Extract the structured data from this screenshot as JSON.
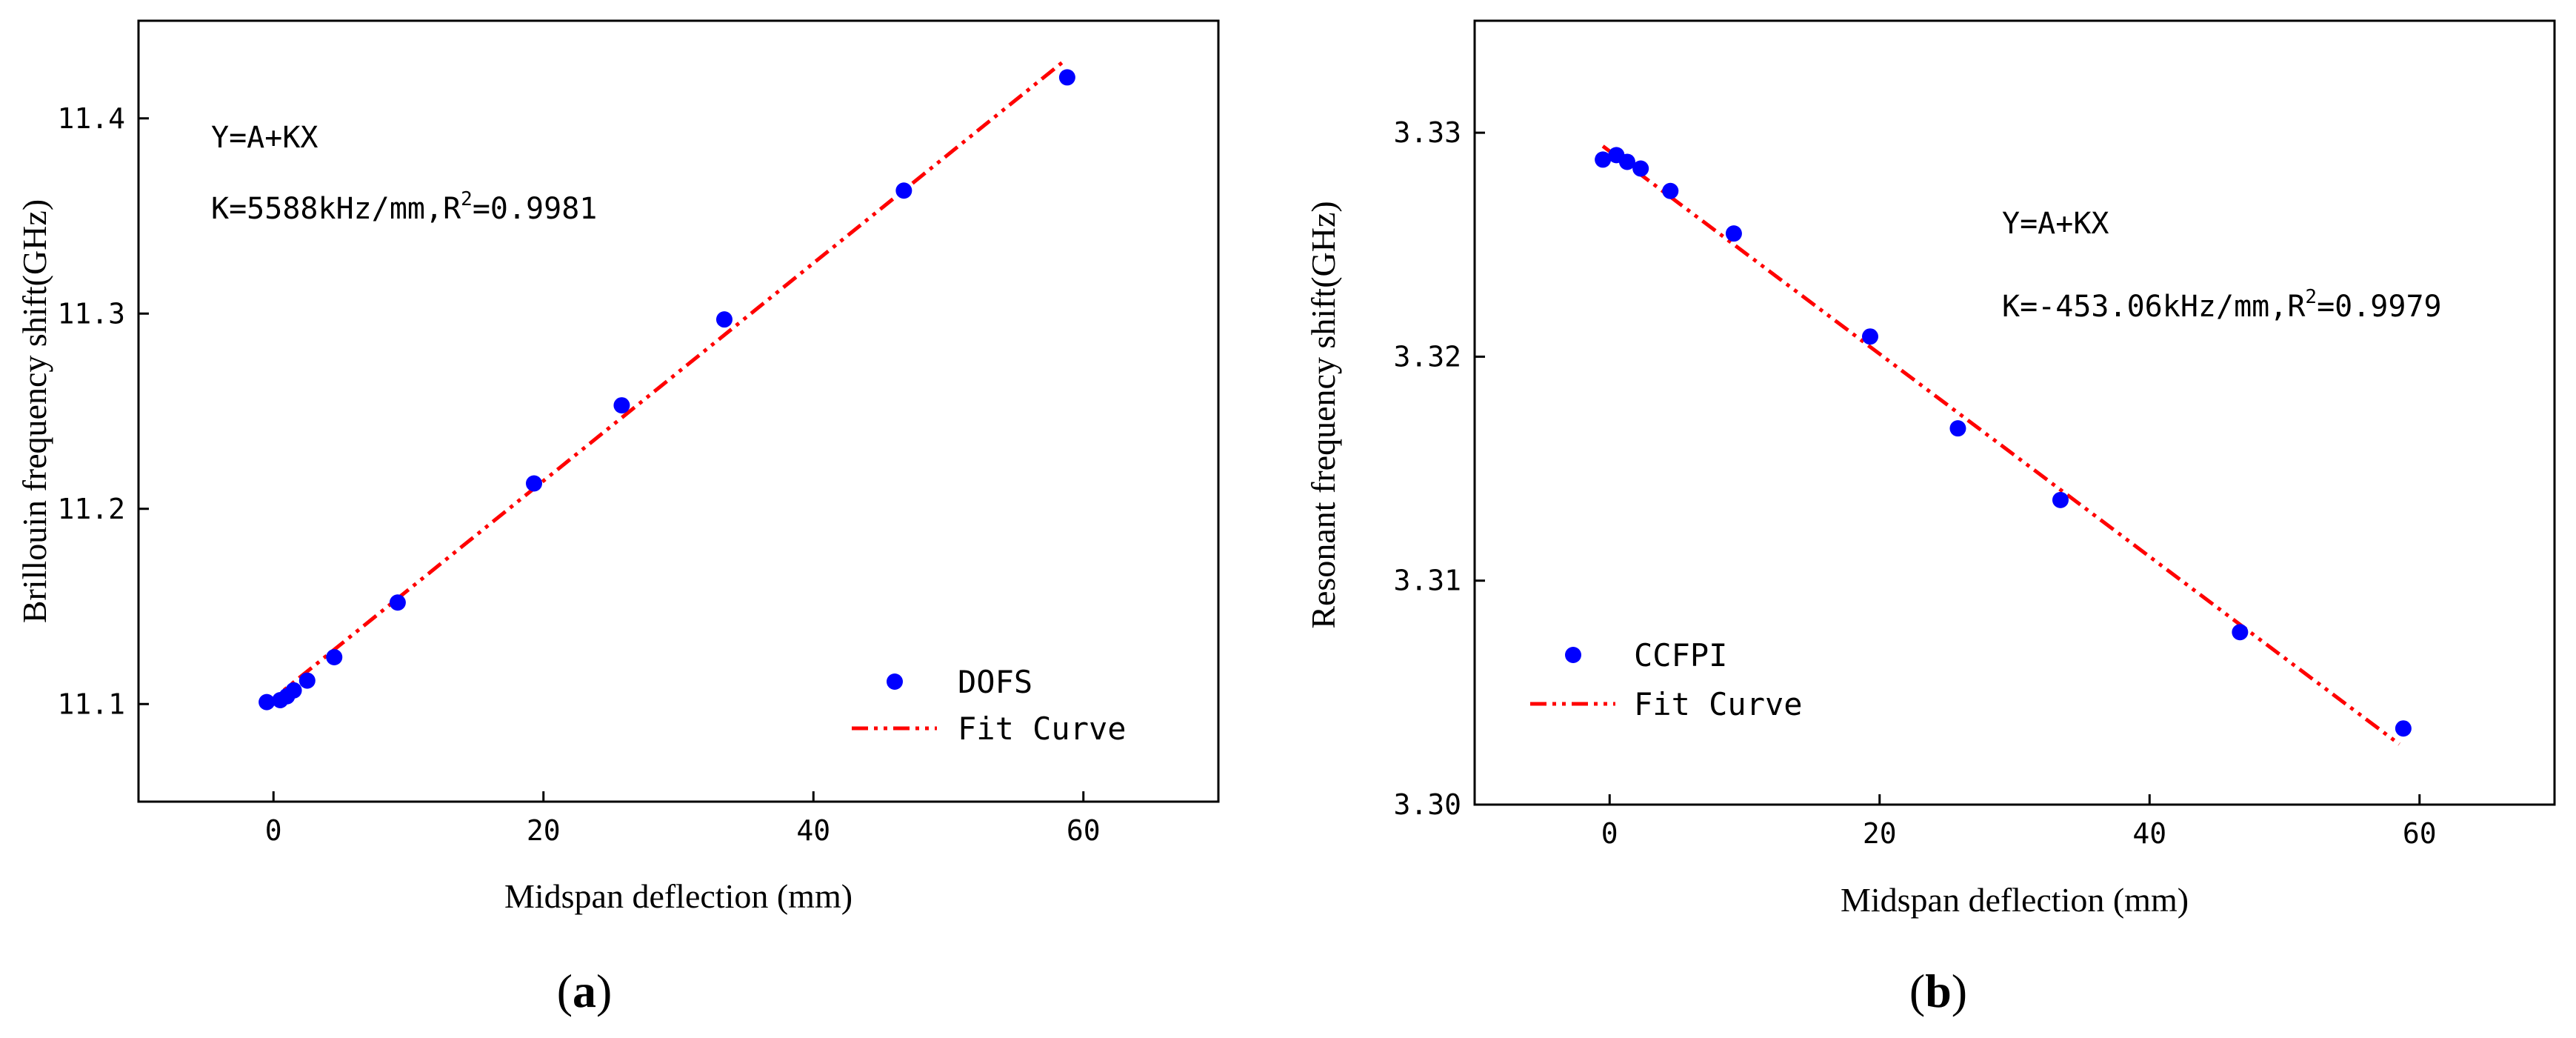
{
  "chart_data": [
    {
      "panel": "a",
      "type": "scatter",
      "caption_open": "(",
      "caption_letter": "a",
      "caption_close": ")",
      "xlabel": "Midspan deflection (mm)",
      "ylabel": "Brillouin frequency shift(GHz)",
      "xlim": [
        -10,
        70
      ],
      "ylim": [
        11.05,
        11.45
      ],
      "xticks": [
        0,
        20,
        40,
        60
      ],
      "yticks": [
        11.1,
        11.2,
        11.3,
        11.4
      ],
      "xtick_labels": [
        "0",
        "20",
        "40",
        "60"
      ],
      "ytick_labels": [
        "11.1",
        "11.2",
        "11.3",
        "11.4"
      ],
      "annotation_line1": "Y=A+KX",
      "annotation_line2_prefix": "K=5588kHz/mm,R",
      "annotation_sup": "2",
      "annotation_line2_suffix": "=0.9981",
      "legend_position": "bottom-right",
      "colors": {
        "points": "#0000ff",
        "fit": "#ff0000"
      },
      "series": [
        {
          "name": "DOFS",
          "kind": "scatter",
          "x": [
            -0.5,
            0.5,
            1.0,
            1.5,
            2.5,
            4.5,
            9.2,
            19.3,
            25.8,
            33.4,
            46.7,
            58.8
          ],
          "y": [
            11.101,
            11.102,
            11.104,
            11.107,
            11.112,
            11.124,
            11.152,
            11.213,
            11.253,
            11.297,
            11.363,
            11.421
          ]
        },
        {
          "name": "Fit Curve",
          "kind": "line",
          "x": [
            -0.5,
            58.5
          ],
          "y": [
            11.1,
            11.429
          ]
        }
      ]
    },
    {
      "panel": "b",
      "type": "scatter",
      "caption_open": "(",
      "caption_letter": "b",
      "caption_close": ")",
      "xlabel": "Midspan deflection (mm)",
      "ylabel": "Resonant frequency shift(GHz)",
      "xlim": [
        -10,
        70
      ],
      "ylim": [
        3.3,
        3.335
      ],
      "xticks": [
        0,
        20,
        40,
        60
      ],
      "yticks": [
        3.3,
        3.31,
        3.32,
        3.33
      ],
      "xtick_labels": [
        "0",
        "20",
        "40",
        "60"
      ],
      "ytick_labels": [
        "3.30",
        "3.31",
        "3.32",
        "3.33"
      ],
      "annotation_line1": "Y=A+KX",
      "annotation_line2_prefix": "K=-453.06kHz/mm,R",
      "annotation_sup": "2",
      "annotation_line2_suffix": "=0.9979",
      "legend_position": "bottom-left",
      "colors": {
        "points": "#0000ff",
        "fit": "#ff0000"
      },
      "series": [
        {
          "name": "CCFPI",
          "kind": "scatter",
          "x": [
            -0.5,
            0.5,
            1.3,
            2.3,
            4.5,
            9.2,
            19.3,
            25.8,
            33.4,
            46.7,
            58.8
          ],
          "y": [
            3.3288,
            3.329,
            3.3287,
            3.3284,
            3.3274,
            3.3255,
            3.3209,
            3.3168,
            3.3136,
            3.3077,
            3.3034
          ]
        },
        {
          "name": "Fit Curve",
          "kind": "line",
          "x": [
            -0.5,
            58.5
          ],
          "y": [
            3.3294,
            3.3027
          ]
        }
      ]
    }
  ]
}
